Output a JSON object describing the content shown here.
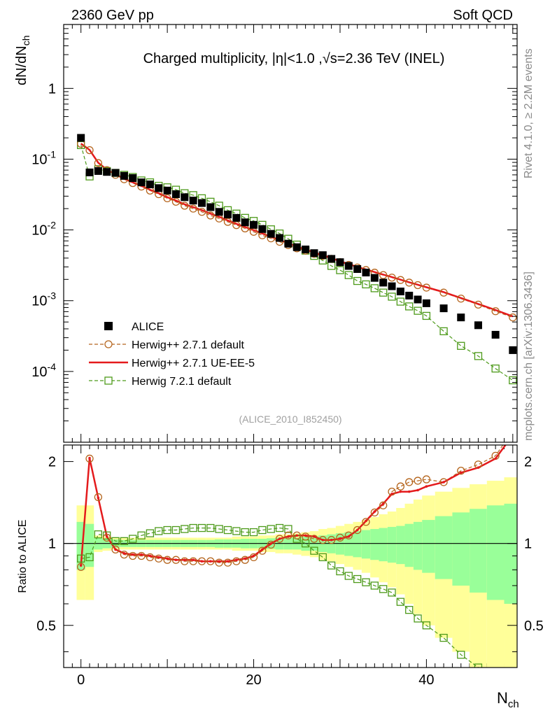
{
  "header": {
    "left": "2360 GeV pp",
    "right": "Soft QCD"
  },
  "side_labels": {
    "rivet": "Rivet 4.1.0, ≥ 2.2M events",
    "mcplots": "mcplots.cern.ch [arXiv:1306.3436]"
  },
  "chart_data": {
    "type": "scatter",
    "title": "Charged multiplicity, |η|<1.0 ,√s=2.36 TeV (INEL)",
    "analysis_id": "(ALICE_2010_I852450)",
    "xlabel": "N",
    "xlabel_sub": "ch",
    "ylabel_main": "dN/dN",
    "ylabel_main_sub": "ch",
    "ylabel_ratio": "Ratio to ALICE",
    "xlim": [
      -2,
      50.5
    ],
    "ylim_main": [
      1e-05,
      8
    ],
    "ylim_ratio": [
      0.35,
      2.3
    ],
    "x_ticks": [
      "0",
      "20",
      "40"
    ],
    "main_y_ticks": [
      "1",
      "10^-1",
      "10^-2",
      "10^-3",
      "10^-4"
    ],
    "ratio_y_ticks": [
      "2",
      "1",
      "0.5"
    ],
    "legend": [
      {
        "name": "ALICE",
        "color": "#000000"
      },
      {
        "name": "Herwig++ 2.7.1 default",
        "color": "#b5651d"
      },
      {
        "name": "Herwig++ 2.7.1 UE-EE-5",
        "color": "#e41a1c"
      },
      {
        "name": "Herwig 7.2.1 default",
        "color": "#4d9a1a"
      }
    ],
    "x": [
      0,
      1,
      2,
      3,
      4,
      5,
      6,
      7,
      8,
      9,
      10,
      11,
      12,
      13,
      14,
      15,
      16,
      17,
      18,
      19,
      20,
      21,
      22,
      23,
      24,
      25,
      26,
      27,
      28,
      29,
      30,
      31,
      32,
      33,
      34,
      35,
      36,
      37,
      38,
      39,
      40,
      42,
      44,
      46,
      48,
      50
    ],
    "data": [
      0.2,
      0.065,
      0.068,
      0.066,
      0.064,
      0.058,
      0.054,
      0.047,
      0.044,
      0.039,
      0.036,
      0.032,
      0.029,
      0.026,
      0.024,
      0.021,
      0.018,
      0.0165,
      0.0148,
      0.0128,
      0.0118,
      0.0103,
      0.0088,
      0.0077,
      0.0064,
      0.0057,
      0.0053,
      0.0047,
      0.0044,
      0.0039,
      0.0035,
      0.0031,
      0.0028,
      0.0025,
      0.0021,
      0.0018,
      0.0016,
      0.00135,
      0.00118,
      0.00104,
      0.00092,
      0.00078,
      0.00058,
      0.00045,
      0.00033,
      0.0002
    ],
    "series": [
      {
        "name": "Herwig++ 2.7.1 default",
        "color": "#b5651d",
        "values": [
          0.165,
          0.134,
          0.088,
          0.07,
          0.06,
          0.052,
          0.046,
          0.041,
          0.036,
          0.032,
          0.028,
          0.025,
          0.022,
          0.02,
          0.018,
          0.016,
          0.0145,
          0.013,
          0.0117,
          0.0105,
          0.0094,
          0.0084,
          0.0076,
          0.0068,
          0.0061,
          0.0055,
          0.0051,
          0.0046,
          0.0043,
          0.0039,
          0.0035,
          0.0032,
          0.00294,
          0.00271,
          0.00249,
          0.0023,
          0.00212,
          0.00196,
          0.0018,
          0.00166,
          0.00153,
          0.0013,
          0.00107,
          0.00088,
          0.00071,
          0.00058
        ]
      },
      {
        "name": "Herwig++ 2.7.1 UE-EE-5",
        "color": "#e41a1c",
        "values": [
          0.166,
          0.135,
          0.089,
          0.071,
          0.061,
          0.053,
          0.047,
          0.042,
          0.037,
          0.033,
          0.029,
          0.026,
          0.023,
          0.021,
          0.019,
          0.017,
          0.0153,
          0.0136,
          0.0122,
          0.011,
          0.0099,
          0.0089,
          0.008,
          0.0072,
          0.0065,
          0.0058,
          0.0053,
          0.0048,
          0.0044,
          0.004,
          0.0036,
          0.0033,
          0.003,
          0.00276,
          0.00254,
          0.00234,
          0.00216,
          0.00198,
          0.00182,
          0.00168,
          0.00155,
          0.00132,
          0.00109,
          0.0009,
          0.00074,
          0.0006
        ]
      },
      {
        "name": "Herwig 7.2.1 default",
        "color": "#4d9a1a",
        "values": [
          0.158,
          0.057,
          0.072,
          0.068,
          0.064,
          0.06,
          0.056,
          0.05,
          0.047,
          0.042,
          0.04,
          0.037,
          0.033,
          0.031,
          0.028,
          0.025,
          0.022,
          0.019,
          0.017,
          0.0148,
          0.0134,
          0.0118,
          0.0102,
          0.0089,
          0.0075,
          0.0062,
          0.0051,
          0.0043,
          0.0037,
          0.0031,
          0.0027,
          0.0023,
          0.0019,
          0.0017,
          0.0015,
          0.0013,
          0.00114,
          0.00097,
          0.00083,
          0.00072,
          0.00061,
          0.00037,
          0.00023,
          0.000165,
          0.00011,
          7.5e-05
        ]
      }
    ],
    "ratio_series": [
      {
        "name": "Herwig++ 2.7.1 default",
        "values": [
          0.82,
          2.05,
          1.48,
          1.05,
          0.95,
          0.91,
          0.9,
          0.9,
          0.89,
          0.88,
          0.87,
          0.87,
          0.86,
          0.86,
          0.86,
          0.86,
          0.85,
          0.85,
          0.86,
          0.87,
          0.89,
          0.94,
          0.99,
          1.04,
          1.07,
          1.07,
          1.06,
          1.04,
          1.03,
          1.03,
          1.05,
          1.07,
          1.12,
          1.2,
          1.3,
          1.38,
          1.55,
          1.62,
          1.68,
          1.7,
          1.72,
          1.68,
          1.85,
          1.95,
          2.1,
          2.6
        ]
      },
      {
        "name": "Herwig++ 2.7.1 UE-EE-5",
        "values": [
          0.83,
          2.06,
          1.47,
          1.06,
          0.95,
          0.92,
          0.91,
          0.91,
          0.9,
          0.89,
          0.88,
          0.87,
          0.87,
          0.87,
          0.86,
          0.86,
          0.86,
          0.86,
          0.87,
          0.88,
          0.9,
          0.95,
          1.0,
          1.04,
          1.06,
          1.07,
          1.07,
          1.06,
          1.03,
          1.03,
          1.04,
          1.06,
          1.12,
          1.21,
          1.31,
          1.4,
          1.52,
          1.55,
          1.55,
          1.57,
          1.62,
          1.68,
          1.82,
          1.9,
          2.05,
          2.5
        ]
      },
      {
        "name": "Herwig 7.2.1 default",
        "values": [
          0.88,
          0.89,
          1.08,
          1.07,
          1.02,
          1.02,
          1.04,
          1.07,
          1.09,
          1.11,
          1.12,
          1.12,
          1.13,
          1.14,
          1.14,
          1.14,
          1.13,
          1.12,
          1.11,
          1.1,
          1.1,
          1.12,
          1.13,
          1.14,
          1.13,
          1.04,
          1.0,
          0.94,
          0.89,
          0.83,
          0.79,
          0.76,
          0.74,
          0.72,
          0.7,
          0.68,
          0.66,
          0.61,
          0.57,
          0.53,
          0.5,
          0.45,
          0.39,
          0.35,
          0.32,
          0.3
        ]
      }
    ],
    "uncertainty_band": {
      "x_edges": [
        -0.5,
        0.5,
        1.5,
        2.5,
        3.5,
        4.5,
        5.5,
        6.5,
        7.5,
        8.5,
        9.5,
        10.5,
        11.5,
        12.5,
        13.5,
        14.5,
        15.5,
        16.5,
        17.5,
        18.5,
        19.5,
        20.5,
        21.5,
        22.5,
        23.5,
        24.5,
        25.5,
        26.5,
        27.5,
        28.5,
        29.5,
        30.5,
        31.5,
        32.5,
        33.5,
        34.5,
        35.5,
        36.5,
        37.5,
        38.5,
        39.5,
        41.0,
        43.0,
        45.0,
        47.0,
        49.0,
        51.0
      ],
      "inner": [
        0.2,
        0.18,
        0.05,
        0.04,
        0.035,
        0.03,
        0.03,
        0.03,
        0.03,
        0.03,
        0.03,
        0.03,
        0.03,
        0.03,
        0.03,
        0.03,
        0.035,
        0.035,
        0.035,
        0.04,
        0.04,
        0.04,
        0.045,
        0.05,
        0.05,
        0.05,
        0.06,
        0.06,
        0.07,
        0.08,
        0.09,
        0.1,
        0.11,
        0.12,
        0.13,
        0.14,
        0.15,
        0.16,
        0.18,
        0.2,
        0.22,
        0.26,
        0.3,
        0.34,
        0.38,
        0.4
      ],
      "outer": [
        0.38,
        0.38,
        0.07,
        0.06,
        0.05,
        0.05,
        0.05,
        0.05,
        0.05,
        0.05,
        0.05,
        0.05,
        0.05,
        0.05,
        0.05,
        0.05,
        0.05,
        0.05,
        0.06,
        0.06,
        0.06,
        0.07,
        0.07,
        0.08,
        0.08,
        0.09,
        0.1,
        0.11,
        0.13,
        0.14,
        0.16,
        0.18,
        0.2,
        0.22,
        0.25,
        0.28,
        0.31,
        0.35,
        0.4,
        0.45,
        0.5,
        0.55,
        0.6,
        0.65,
        0.7,
        0.75
      ],
      "inner_color": "#99ff99",
      "outer_color": "#ffff99"
    }
  }
}
